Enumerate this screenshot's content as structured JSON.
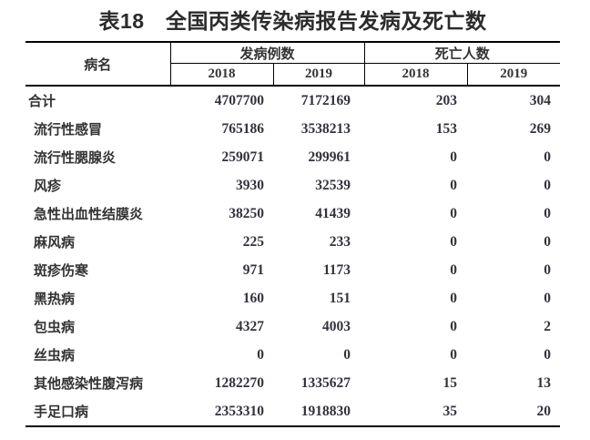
{
  "title": "表18　全国丙类传染病报告发病及死亡数",
  "colors": {
    "text": "#333333",
    "line": "#000000",
    "background": "#ffffff"
  },
  "table": {
    "header": {
      "disease": "病名",
      "cases": "发病例数",
      "deaths": "死亡人数",
      "years": [
        "2018",
        "2019",
        "2018",
        "2019"
      ]
    },
    "rows": [
      {
        "name": "合计",
        "is_total": true,
        "cases_2018": "4707700",
        "cases_2019": "7172169",
        "deaths_2018": "203",
        "deaths_2019": "304"
      },
      {
        "name": "流行性感冒",
        "is_total": false,
        "cases_2018": "765186",
        "cases_2019": "3538213",
        "deaths_2018": "153",
        "deaths_2019": "269"
      },
      {
        "name": "流行性腮腺炎",
        "is_total": false,
        "cases_2018": "259071",
        "cases_2019": "299961",
        "deaths_2018": "0",
        "deaths_2019": "0"
      },
      {
        "name": "风疹",
        "is_total": false,
        "cases_2018": "3930",
        "cases_2019": "32539",
        "deaths_2018": "0",
        "deaths_2019": "0"
      },
      {
        "name": "急性出血性结膜炎",
        "is_total": false,
        "cases_2018": "38250",
        "cases_2019": "41439",
        "deaths_2018": "0",
        "deaths_2019": "0"
      },
      {
        "name": "麻风病",
        "is_total": false,
        "cases_2018": "225",
        "cases_2019": "233",
        "deaths_2018": "0",
        "deaths_2019": "0"
      },
      {
        "name": "斑疹伤寒",
        "is_total": false,
        "cases_2018": "971",
        "cases_2019": "1173",
        "deaths_2018": "0",
        "deaths_2019": "0"
      },
      {
        "name": "黑热病",
        "is_total": false,
        "cases_2018": "160",
        "cases_2019": "151",
        "deaths_2018": "0",
        "deaths_2019": "0"
      },
      {
        "name": "包虫病",
        "is_total": false,
        "cases_2018": "4327",
        "cases_2019": "4003",
        "deaths_2018": "0",
        "deaths_2019": "2"
      },
      {
        "name": "丝虫病",
        "is_total": false,
        "cases_2018": "0",
        "cases_2019": "0",
        "deaths_2018": "0",
        "deaths_2019": "0"
      },
      {
        "name": "其他感染性腹泻病",
        "is_total": false,
        "cases_2018": "1282270",
        "cases_2019": "1335627",
        "deaths_2018": "15",
        "deaths_2019": "13"
      },
      {
        "name": "手足口病",
        "is_total": false,
        "cases_2018": "2353310",
        "cases_2019": "1918830",
        "deaths_2018": "35",
        "deaths_2019": "20"
      }
    ]
  }
}
